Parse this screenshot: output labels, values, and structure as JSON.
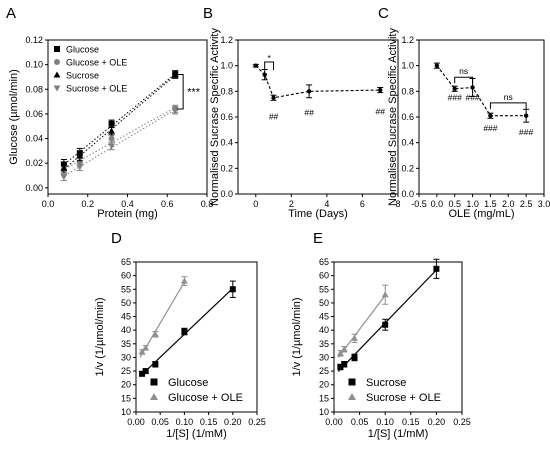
{
  "chart_data": [
    {
      "panel": "A",
      "type": "scatter",
      "xlabel": "Protein (mg)",
      "ylabel": "Glucose (µmol/min)",
      "xlim": [
        0,
        0.8
      ],
      "ylim": [
        -0.005,
        0.12
      ],
      "xticks": [
        "0.0",
        "0.2",
        "0.4",
        "0.6",
        "0.8"
      ],
      "yticks": [
        "0.00",
        "0.02",
        "0.04",
        "0.06",
        "0.08",
        "0.10",
        "0.12"
      ],
      "series": [
        {
          "name": "Glucose",
          "marker": "square",
          "color": "#000000",
          "fit": "dotted",
          "x": [
            0.08,
            0.16,
            0.32,
            0.64
          ],
          "y": [
            0.019,
            0.028,
            0.052,
            0.092
          ],
          "err": [
            0.004,
            0.004,
            0.003,
            0.003
          ]
        },
        {
          "name": "Glucose + OLE",
          "marker": "circle",
          "color": "#808080",
          "fit": "dotted",
          "x": [
            0.08,
            0.16,
            0.32,
            0.64
          ],
          "y": [
            0.014,
            0.021,
            0.04,
            0.064
          ],
          "err": [
            0.003,
            0.003,
            0.003,
            0.003
          ]
        },
        {
          "name": "Sucrose",
          "marker": "triangle-up",
          "color": "#000000",
          "fit": "dotted",
          "x": [
            0.08,
            0.16,
            0.32,
            0.64
          ],
          "y": [
            0.016,
            0.026,
            0.046,
            0.092
          ],
          "err": [
            0.004,
            0.004,
            0.003,
            0.003
          ]
        },
        {
          "name": "Sucrose + OLE",
          "marker": "triangle-down",
          "color": "#808080",
          "fit": "dotted",
          "x": [
            0.08,
            0.16,
            0.32,
            0.64
          ],
          "y": [
            0.009,
            0.017,
            0.034,
            0.063
          ],
          "err": [
            0.003,
            0.003,
            0.003,
            0.003
          ]
        }
      ],
      "annotations": [
        {
          "text": "***",
          "bracket_y": [
            0.092,
            0.064
          ]
        }
      ],
      "legend": "top-left"
    },
    {
      "panel": "B",
      "type": "line",
      "xlabel": "Time (Days)",
      "ylabel": "Normalised Sucrase Specific Activity",
      "xlim": [
        -1,
        8
      ],
      "ylim": [
        0,
        1.2
      ],
      "xticks": [
        "0",
        "2",
        "4",
        "6",
        "8"
      ],
      "yticks": [
        "0.0",
        "0.2",
        "0.4",
        "0.6",
        "0.8",
        "1.0",
        "1.2"
      ],
      "series": [
        {
          "name": "",
          "style": "dashed",
          "color": "#000000",
          "x": [
            0,
            0.5,
            1,
            3,
            7
          ],
          "y": [
            1.0,
            0.93,
            0.75,
            0.8,
            0.81
          ],
          "err": [
            0.01,
            0.04,
            0.02,
            0.05,
            0.02
          ]
        }
      ],
      "annotations": [
        {
          "text": "*",
          "bracket_x": [
            0.5,
            1
          ]
        },
        {
          "text": "##",
          "x": 1,
          "y": 0.58
        },
        {
          "text": "##",
          "x": 3,
          "y": 0.61
        },
        {
          "text": "##",
          "x": 7,
          "y": 0.62
        }
      ]
    },
    {
      "panel": "C",
      "type": "line",
      "xlabel": "OLE (mg/mL)",
      "ylabel": "Normalised Sucrase Specific Activity",
      "xlim": [
        -0.5,
        3
      ],
      "ylim": [
        0,
        1.2
      ],
      "xticks": [
        "-0.5",
        "0.0",
        "0.5",
        "1.0",
        "1.5",
        "2.0",
        "2.5",
        "3.0"
      ],
      "yticks": [
        "0.0",
        "0.2",
        "0.4",
        "0.6",
        "0.8",
        "1.0",
        "1.2"
      ],
      "series": [
        {
          "name": "",
          "style": "dashed",
          "color": "#000000",
          "x": [
            0,
            0.5,
            1,
            1.5,
            2.5
          ],
          "y": [
            1.0,
            0.82,
            0.83,
            0.61,
            0.61
          ],
          "err": [
            0.02,
            0.02,
            0.07,
            0.02,
            0.05
          ]
        }
      ],
      "annotations": [
        {
          "text": "ns",
          "bracket_x": [
            0.5,
            1
          ]
        },
        {
          "text": "ns",
          "bracket_x": [
            1.5,
            2.5
          ]
        },
        {
          "text": "###",
          "x": 0.5,
          "y": 0.73
        },
        {
          "text": "###",
          "x": 1,
          "y": 0.73
        },
        {
          "text": "###",
          "x": 1.5,
          "y": 0.49
        },
        {
          "text": "###",
          "x": 2.5,
          "y": 0.46
        }
      ]
    },
    {
      "panel": "D",
      "type": "scatter",
      "xlabel": "1/[S] (1/mM)",
      "ylabel": "1/v (1/µmol/min)",
      "xlim": [
        0,
        0.25
      ],
      "ylim": [
        10,
        65
      ],
      "xticks": [
        "0.00",
        "0.05",
        "0.10",
        "0.15",
        "0.20",
        "0.25"
      ],
      "yticks": [
        "10",
        "15",
        "20",
        "25",
        "30",
        "35",
        "40",
        "45",
        "50",
        "55",
        "60",
        "65"
      ],
      "series": [
        {
          "name": "Glucose",
          "marker": "square",
          "color": "#000000",
          "fit": "solid",
          "x": [
            0.0125,
            0.02,
            0.04,
            0.1,
            0.2
          ],
          "y": [
            24,
            25,
            27.5,
            39.5,
            55
          ],
          "err": [
            0.8,
            0.8,
            1.0,
            1.2,
            3.0
          ]
        },
        {
          "name": "Glucose + OLE",
          "marker": "triangle-up",
          "color": "#909090",
          "fit": "solid",
          "x": [
            0.0125,
            0.02,
            0.04,
            0.1
          ],
          "y": [
            32,
            33.5,
            38.5,
            58
          ],
          "err": [
            0.8,
            0.8,
            1.0,
            1.6
          ]
        }
      ],
      "legend": "bottom-center"
    },
    {
      "panel": "E",
      "type": "scatter",
      "xlabel": "1/[S] (1/mM)",
      "ylabel": "1/v (1/µmol/min)",
      "xlim": [
        0,
        0.25
      ],
      "ylim": [
        10,
        65
      ],
      "xticks": [
        "0.00",
        "0.05",
        "0.10",
        "0.15",
        "0.20",
        "0.25"
      ],
      "yticks": [
        "10",
        "15",
        "20",
        "25",
        "30",
        "35",
        "40",
        "45",
        "50",
        "55",
        "60",
        "65"
      ],
      "series": [
        {
          "name": "Sucrose",
          "marker": "square",
          "color": "#000000",
          "fit": "solid",
          "x": [
            0.0125,
            0.02,
            0.04,
            0.1,
            0.2
          ],
          "y": [
            26.5,
            27.5,
            30,
            42,
            62.5
          ],
          "err": [
            1.0,
            1.0,
            1.2,
            2.0,
            3.5
          ]
        },
        {
          "name": "Sucrose + OLE",
          "marker": "triangle-up",
          "color": "#909090",
          "fit": "solid",
          "x": [
            0.0125,
            0.02,
            0.04,
            0.1
          ],
          "y": [
            31.5,
            33,
            37,
            53
          ],
          "err": [
            1.0,
            1.0,
            1.5,
            3.5
          ]
        }
      ],
      "legend": "bottom-center"
    }
  ]
}
